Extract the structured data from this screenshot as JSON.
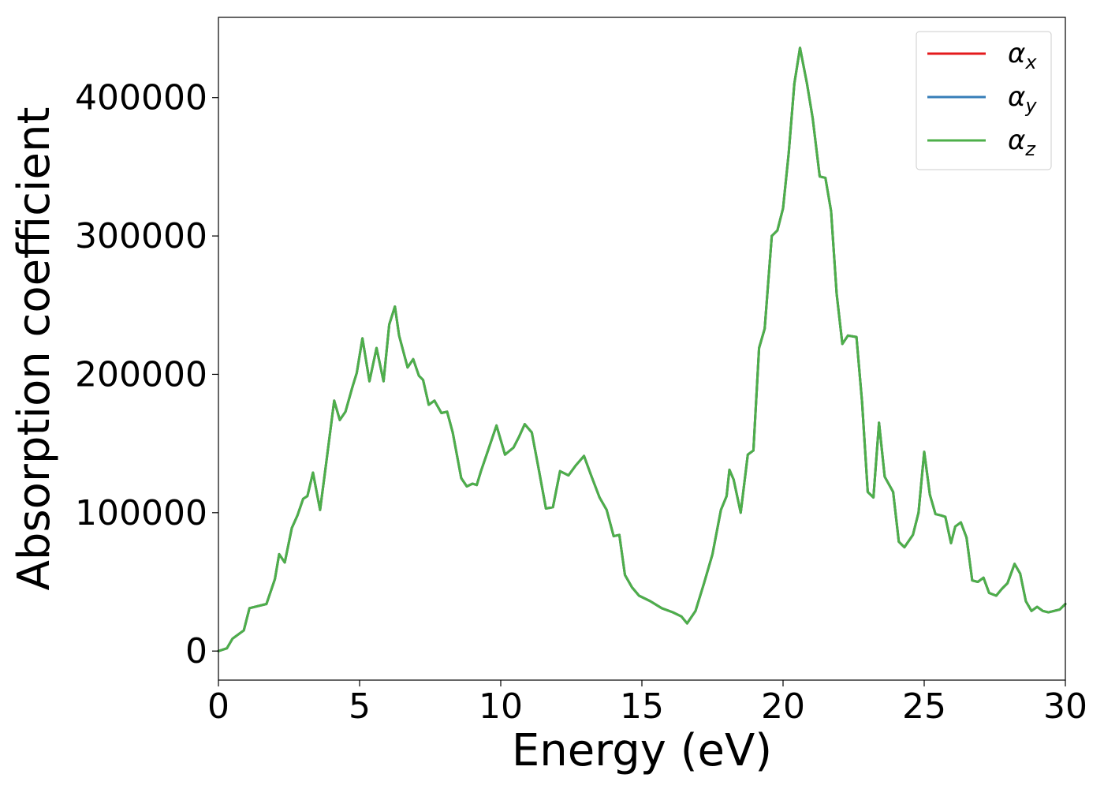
{
  "chart_data": {
    "type": "line",
    "xlabel": "Energy (eV)",
    "ylabel": "Absorption coefficient",
    "xlim": [
      0,
      30
    ],
    "ylim": [
      -21000,
      458000
    ],
    "xticks": [
      "0",
      "5",
      "10",
      "15",
      "20",
      "25",
      "30"
    ],
    "yticks": [
      "0",
      "100000",
      "200000",
      "300000",
      "400000"
    ],
    "grid": false,
    "legend_position": "top-right",
    "series": [
      {
        "name": "α",
        "subscript": "x",
        "color": "#e41a1c"
      },
      {
        "name": "α",
        "subscript": "y",
        "color": "#377eb8"
      },
      {
        "name": "α",
        "subscript": "z",
        "color": "#4daf4a"
      }
    ],
    "x": [
      0,
      0.3,
      0.5,
      0.9,
      1.1,
      1.3,
      1.7,
      2.0,
      2.15,
      2.35,
      2.6,
      2.8,
      3.0,
      3.15,
      3.35,
      3.6,
      3.8,
      4.1,
      4.3,
      4.5,
      4.75,
      4.9,
      5.1,
      5.35,
      5.6,
      5.85,
      6.05,
      6.25,
      6.4,
      6.7,
      6.9,
      7.1,
      7.25,
      7.45,
      7.65,
      7.9,
      8.1,
      8.3,
      8.6,
      8.8,
      9.0,
      9.15,
      9.3,
      9.55,
      9.85,
      10.15,
      10.45,
      10.65,
      10.85,
      11.1,
      11.35,
      11.6,
      11.85,
      12.1,
      12.4,
      12.65,
      12.95,
      13.2,
      13.5,
      13.75,
      14.0,
      14.2,
      14.4,
      14.65,
      14.9,
      15.3,
      15.7,
      16.1,
      16.4,
      16.6,
      16.9,
      17.2,
      17.5,
      17.8,
      18.0,
      18.1,
      18.25,
      18.5,
      18.75,
      18.95,
      19.15,
      19.35,
      19.6,
      19.8,
      20.0,
      20.2,
      20.4,
      20.6,
      20.85,
      21.05,
      21.3,
      21.5,
      21.7,
      21.9,
      22.1,
      22.3,
      22.6,
      22.8,
      23.0,
      23.2,
      23.4,
      23.6,
      23.9,
      24.1,
      24.3,
      24.6,
      24.8,
      25.0,
      25.2,
      25.4,
      25.6,
      25.75,
      25.95,
      26.1,
      26.3,
      26.5,
      26.7,
      26.9,
      27.1,
      27.3,
      27.55,
      27.75,
      27.95,
      28.2,
      28.4,
      28.6,
      28.8,
      29.0,
      29.2,
      29.4,
      29.6,
      29.8,
      30.0
    ],
    "y": [
      0,
      2000,
      9000,
      15000,
      31000,
      32000,
      34000,
      52000,
      70000,
      64000,
      89000,
      98000,
      110000,
      112000,
      129000,
      102000,
      133000,
      181000,
      167000,
      173000,
      191000,
      201000,
      226000,
      195000,
      219000,
      195000,
      236000,
      249000,
      228000,
      205000,
      211000,
      199000,
      196000,
      178000,
      181000,
      172000,
      173000,
      158000,
      125000,
      119000,
      121000,
      120000,
      130000,
      145000,
      163000,
      142000,
      147000,
      155000,
      164000,
      158000,
      131000,
      103000,
      104000,
      130000,
      127000,
      134000,
      141000,
      127000,
      111000,
      102000,
      83000,
      84000,
      55000,
      46000,
      40000,
      36000,
      31000,
      28000,
      25000,
      20000,
      29000,
      49000,
      70000,
      102000,
      112000,
      131000,
      124000,
      100000,
      142000,
      145000,
      219000,
      233000,
      300000,
      304000,
      320000,
      360000,
      410000,
      436000,
      410000,
      385000,
      343000,
      342000,
      318000,
      258000,
      222000,
      228000,
      227000,
      180000,
      115000,
      111000,
      165000,
      126000,
      115000,
      79000,
      75000,
      84000,
      100000,
      144000,
      113000,
      99000,
      98000,
      97000,
      78000,
      90000,
      93000,
      82000,
      51000,
      50000,
      53000,
      42000,
      40000,
      45000,
      49000,
      63000,
      56000,
      36000,
      29000,
      32000,
      29000,
      28000,
      29000,
      30000,
      34000
    ]
  }
}
